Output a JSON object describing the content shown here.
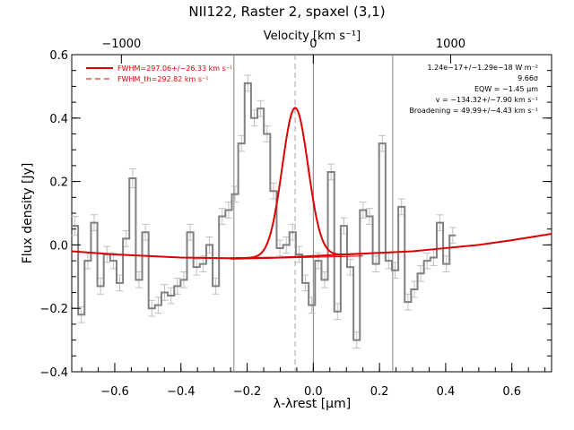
{
  "chart_data": {
    "type": "line",
    "title": "NII122, Raster 2, spaxel (3,1)",
    "xlabel": "λ-λrest [μm]",
    "ylabel": "Flux density [Jy]",
    "top_axis_label": "Velocity [km s⁻¹]",
    "xlim": [
      -0.73,
      0.72
    ],
    "ylim": [
      -0.4,
      0.6
    ],
    "top_axis_ticks": [
      {
        "x": -0.58,
        "label": "−1000"
      },
      {
        "x": 0.0,
        "label": "0"
      },
      {
        "x": 0.415,
        "label": "1000"
      }
    ],
    "bottom_ticks": [
      {
        "x": -0.6,
        "label": "−0.6"
      },
      {
        "x": -0.4,
        "label": "−0.4"
      },
      {
        "x": -0.2,
        "label": "−0.2"
      },
      {
        "x": 0.0,
        "label": "0.0"
      },
      {
        "x": 0.2,
        "label": "0.2"
      },
      {
        "x": 0.4,
        "label": "0.4"
      },
      {
        "x": 0.6,
        "label": "0.6"
      }
    ],
    "y_ticks": [
      {
        "y": -0.4,
        "label": "−0.4"
      },
      {
        "y": -0.2,
        "label": "−0.2"
      },
      {
        "y": 0.0,
        "label": "0.0"
      },
      {
        "y": 0.2,
        "label": "0.2"
      },
      {
        "y": 0.4,
        "label": "0.4"
      },
      {
        "y": 0.6,
        "label": "0.6"
      }
    ],
    "vertical_lines": [
      {
        "x": -0.24,
        "style": "solid",
        "color": "#808080"
      },
      {
        "x": 0.0,
        "style": "solid",
        "color": "#808080"
      },
      {
        "x": 0.24,
        "style": "solid",
        "color": "#808080"
      },
      {
        "x": -0.055,
        "style": "dashed",
        "color": "#a0a0a0"
      }
    ],
    "legend": {
      "placement": "top-left",
      "entries": [
        {
          "label": "FWHM=297.06+/−26.33 km s⁻¹",
          "color": "#dd0000",
          "style": "solid"
        },
        {
          "label": "FWHM_th=292.82 km s⁻¹",
          "color": "#dd0000",
          "style": "dashed"
        }
      ]
    },
    "annotations": [
      "1.24e−17+/−1.29e−18 W m⁻²",
      "9.66σ",
      "EQW = −1.45 μm",
      "v = −134.32+/−7.90 km s⁻¹",
      "Broadening = 49.99+/−4.43 km s⁻¹"
    ],
    "spectrum": {
      "style": "histogram",
      "color": "#808080",
      "x_start": -0.73,
      "x_step": 0.01935,
      "values": [
        0.06,
        -0.22,
        -0.05,
        0.07,
        -0.13,
        -0.03,
        -0.05,
        -0.12,
        0.02,
        0.21,
        -0.11,
        0.04,
        -0.2,
        -0.19,
        -0.15,
        -0.16,
        -0.13,
        -0.11,
        0.04,
        -0.07,
        -0.06,
        0.0,
        -0.13,
        0.09,
        0.11,
        0.16,
        0.32,
        0.51,
        0.4,
        0.43,
        0.35,
        0.17,
        -0.01,
        0.0,
        0.04,
        -0.03,
        -0.12,
        -0.19,
        -0.05,
        -0.11,
        0.23,
        -0.21,
        0.06,
        -0.07,
        -0.3,
        0.11,
        0.09,
        -0.06,
        0.32,
        -0.05,
        -0.08,
        0.12,
        -0.18,
        -0.14,
        -0.09,
        -0.05,
        -0.04,
        0.07,
        -0.06,
        0.03
      ],
      "errors": [
        0.03,
        0.025,
        0.025,
        0.025,
        0.025,
        0.025,
        0.025,
        0.025,
        0.025,
        0.03,
        0.025,
        0.025,
        0.025,
        0.025,
        0.025,
        0.025,
        0.025,
        0.025,
        0.025,
        0.025,
        0.025,
        0.025,
        0.025,
        0.025,
        0.025,
        0.025,
        0.025,
        0.025,
        0.025,
        0.025,
        0.025,
        0.025,
        0.025,
        0.025,
        0.025,
        0.025,
        0.025,
        0.025,
        0.025,
        0.025,
        0.025,
        0.025,
        0.025,
        0.025,
        0.025,
        0.025,
        0.025,
        0.025,
        0.025,
        0.025,
        0.025,
        0.025,
        0.025,
        0.025,
        0.025,
        0.025,
        0.025,
        0.025,
        0.025,
        0.025
      ]
    },
    "baseline_fit": {
      "color": "#dd0000",
      "x": [
        -0.73,
        -0.6,
        -0.4,
        -0.25,
        -0.1,
        0.0,
        0.1,
        0.2,
        0.3,
        0.4,
        0.5,
        0.6,
        0.72
      ],
      "y": [
        -0.02,
        -0.03,
        -0.04,
        -0.042,
        -0.04,
        -0.035,
        -0.03,
        -0.025,
        -0.02,
        -0.01,
        0.0,
        0.015,
        0.035
      ]
    },
    "gaussian_fit": {
      "color": "#dd0000",
      "center": -0.055,
      "amplitude": 0.47,
      "sigma": 0.039,
      "x_range": [
        -0.25,
        0.15
      ]
    },
    "component_line": {
      "color": "#dd0000",
      "x": [
        -0.25,
        0.15
      ],
      "y": [
        -0.045,
        -0.035
      ]
    }
  }
}
